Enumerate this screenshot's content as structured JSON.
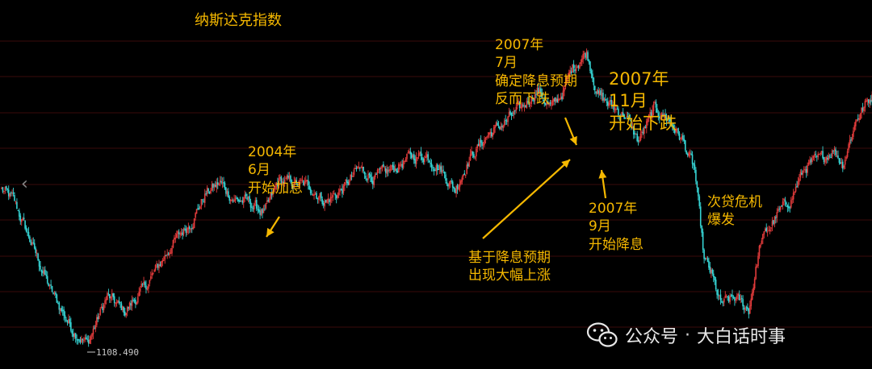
{
  "chart_data": {
    "type": "candlestick",
    "title": "纳斯达克指数",
    "low_label": "1108.490",
    "colors": {
      "up": "#e23b3b",
      "down": "#36d3d3",
      "grid": "#3a0a0a",
      "annotation": "#f5b800",
      "background": "#000000"
    },
    "grid": true,
    "anchors": [
      {
        "i": 0,
        "v": 2010
      },
      {
        "i": 10,
        "v": 1950
      },
      {
        "i": 24,
        "v": 1720
      },
      {
        "i": 42,
        "v": 1420
      },
      {
        "i": 60,
        "v": 1200
      },
      {
        "i": 73,
        "v": 1112
      },
      {
        "i": 90,
        "v": 1390
      },
      {
        "i": 105,
        "v": 1300
      },
      {
        "i": 122,
        "v": 1440
      },
      {
        "i": 146,
        "v": 1700
      },
      {
        "i": 162,
        "v": 1830
      },
      {
        "i": 174,
        "v": 1990
      },
      {
        "i": 186,
        "v": 2050
      },
      {
        "i": 198,
        "v": 1950
      },
      {
        "i": 210,
        "v": 1940
      },
      {
        "i": 224,
        "v": 1870
      },
      {
        "i": 236,
        "v": 2060
      },
      {
        "i": 248,
        "v": 2050
      },
      {
        "i": 262,
        "v": 2030
      },
      {
        "i": 276,
        "v": 1940
      },
      {
        "i": 290,
        "v": 2010
      },
      {
        "i": 304,
        "v": 2130
      },
      {
        "i": 318,
        "v": 2080
      },
      {
        "i": 334,
        "v": 2130
      },
      {
        "i": 348,
        "v": 2200
      },
      {
        "i": 362,
        "v": 2210
      },
      {
        "i": 374,
        "v": 2130
      },
      {
        "i": 386,
        "v": 2010
      },
      {
        "i": 398,
        "v": 2190
      },
      {
        "i": 414,
        "v": 2330
      },
      {
        "i": 428,
        "v": 2400
      },
      {
        "i": 442,
        "v": 2480
      },
      {
        "i": 456,
        "v": 2590
      },
      {
        "i": 468,
        "v": 2480
      },
      {
        "i": 478,
        "v": 2580
      },
      {
        "i": 486,
        "v": 2720
      },
      {
        "i": 498,
        "v": 2810
      },
      {
        "i": 508,
        "v": 2560
      },
      {
        "i": 518,
        "v": 2500
      },
      {
        "i": 530,
        "v": 2450
      },
      {
        "i": 542,
        "v": 2290
      },
      {
        "i": 556,
        "v": 2480
      },
      {
        "i": 568,
        "v": 2420
      },
      {
        "i": 580,
        "v": 2290
      },
      {
        "i": 590,
        "v": 2120
      },
      {
        "i": 598,
        "v": 1600
      },
      {
        "i": 604,
        "v": 1520
      },
      {
        "i": 612,
        "v": 1340
      },
      {
        "i": 624,
        "v": 1380
      },
      {
        "i": 636,
        "v": 1310
      },
      {
        "i": 646,
        "v": 1700
      },
      {
        "i": 660,
        "v": 1860
      },
      {
        "i": 672,
        "v": 1960
      },
      {
        "i": 684,
        "v": 2140
      },
      {
        "i": 698,
        "v": 2190
      },
      {
        "i": 708,
        "v": 2250
      },
      {
        "i": 716,
        "v": 2160
      },
      {
        "i": 728,
        "v": 2430
      },
      {
        "i": 741,
        "v": 2560
      }
    ],
    "ylim": [
      1050,
      3020
    ],
    "annotations": [
      {
        "text": "2004年\n6月\n开始加息"
      },
      {
        "text": "2007年\n7月\n确定降息预期\n反而下跌"
      },
      {
        "text": "2007年\n11月\n开始下跌"
      },
      {
        "text": "2007年\n9月\n开始降息"
      },
      {
        "text": "次贷危机\n爆发"
      },
      {
        "text": "基于降息预期\n出现大幅上涨"
      }
    ]
  },
  "watermark": {
    "text": "公众号",
    "separator": "·",
    "name": "大白话时事"
  },
  "nav": {
    "left_arrow": "‹"
  },
  "icons": {
    "wechat": "wechat-icon"
  }
}
